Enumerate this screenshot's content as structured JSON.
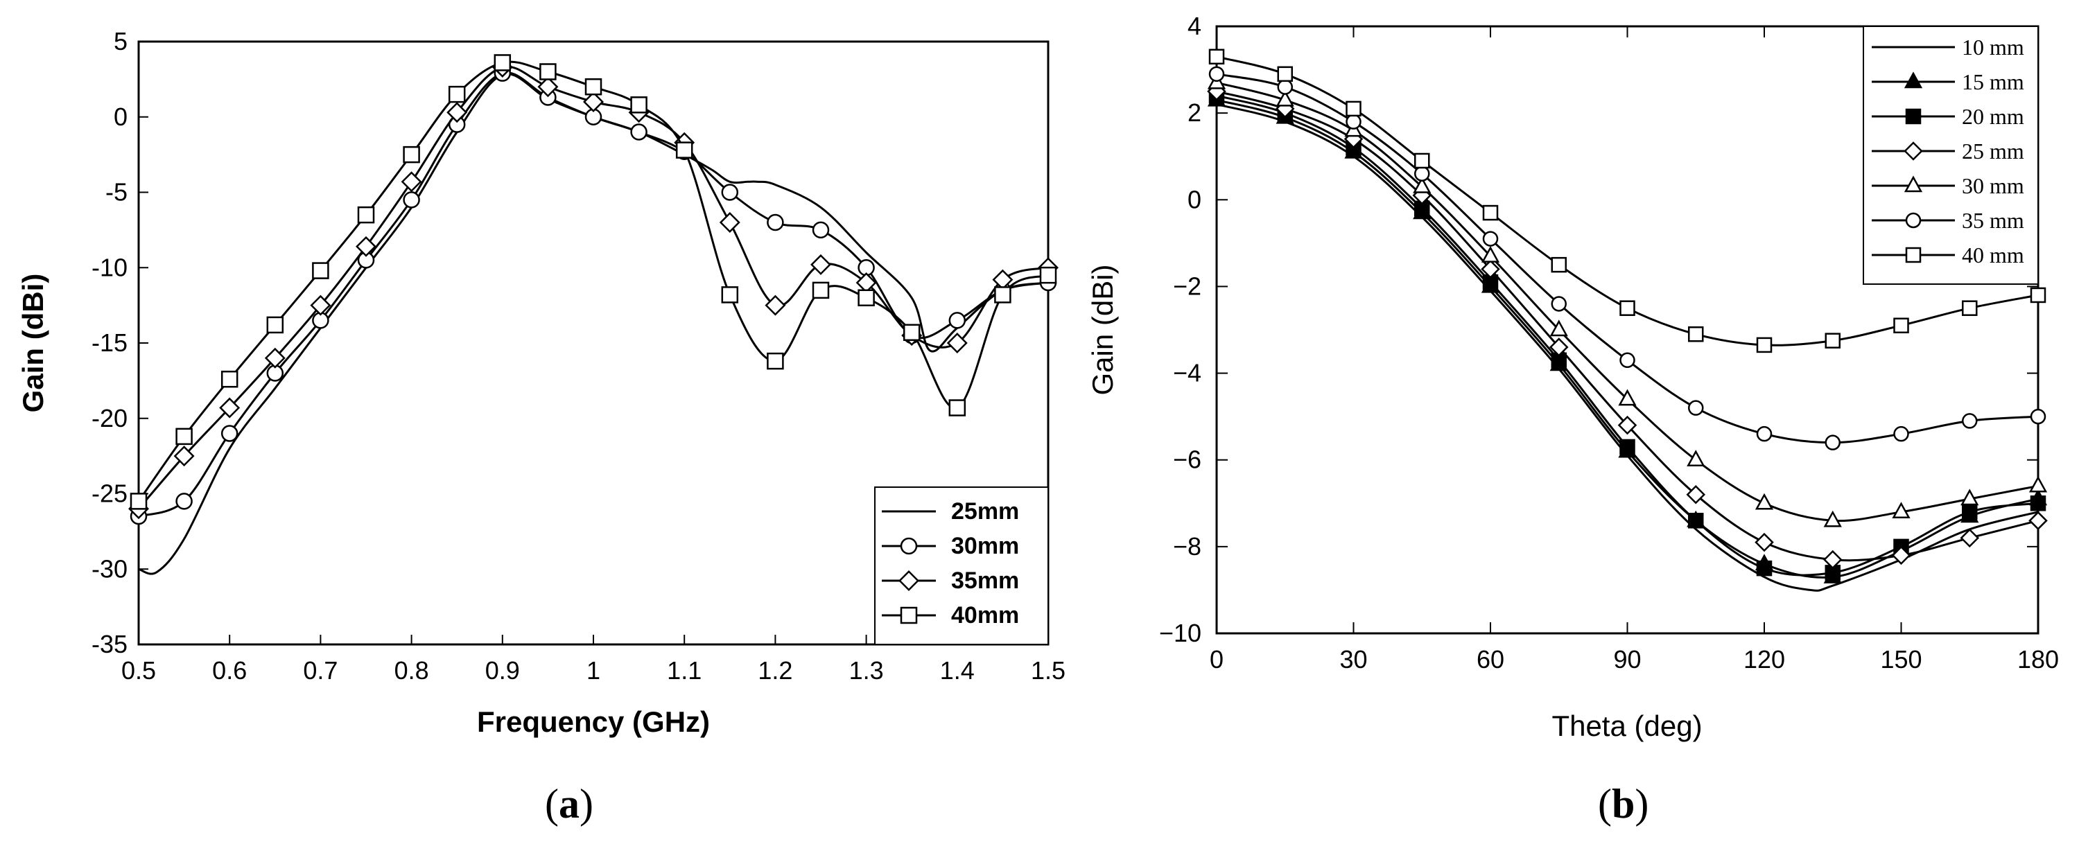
{
  "chart_data": [
    {
      "type": "line",
      "panel_label": "a",
      "title": "",
      "xlabel": "Frequency (GHz)",
      "ylabel": "Gain (dBi)",
      "xlim": [
        0.5,
        1.5
      ],
      "ylim": [
        -35,
        5
      ],
      "xticks": [
        0.5,
        0.6,
        0.7,
        0.8,
        0.9,
        1,
        1.1,
        1.2,
        1.3,
        1.4,
        1.5
      ],
      "xtick_labels": [
        "0.5",
        "0.6",
        "0.7",
        "0.8",
        "0.9",
        "1",
        "1.1",
        "1.2",
        "1.3",
        "1.4",
        "1.5"
      ],
      "yticks": [
        -35,
        -30,
        -25,
        -20,
        -15,
        -10,
        -5,
        0,
        5
      ],
      "ytick_labels": [
        "-35",
        "-30",
        "-25",
        "-20",
        "-15",
        "-10",
        "-5",
        "0",
        "5"
      ],
      "legend_position": "bottom-right",
      "grid": false,
      "series": [
        {
          "name": "25mm",
          "marker": "none",
          "x": [
            0.5,
            0.52,
            0.55,
            0.6,
            0.65,
            0.7,
            0.75,
            0.8,
            0.85,
            0.9,
            0.95,
            1.0,
            1.05,
            1.1,
            1.13,
            1.15,
            1.17,
            1.18,
            1.2,
            1.25,
            1.3,
            1.35,
            1.37,
            1.4,
            1.45,
            1.5
          ],
          "y": [
            -30,
            -30.2,
            -28,
            -22,
            -18,
            -14,
            -10,
            -6,
            -1,
            2.8,
            1.2,
            0,
            -1,
            -2.5,
            -3.5,
            -4.3,
            -4.3,
            -4.3,
            -4.5,
            -6,
            -9,
            -12,
            -15.5,
            -14,
            -11.5,
            -11
          ]
        },
        {
          "name": "30mm",
          "marker": "circle",
          "x": [
            0.5,
            0.55,
            0.6,
            0.65,
            0.7,
            0.75,
            0.8,
            0.85,
            0.9,
            0.95,
            1.0,
            1.05,
            1.1,
            1.15,
            1.2,
            1.25,
            1.3,
            1.35,
            1.4,
            1.45,
            1.5
          ],
          "y": [
            -26.5,
            -25.5,
            -21,
            -17,
            -13.5,
            -9.5,
            -5.5,
            -0.5,
            2.9,
            1.3,
            0,
            -1,
            -2.3,
            -5,
            -7,
            -7.5,
            -10,
            -14.5,
            -13.5,
            -11.5,
            -11
          ]
        },
        {
          "name": "35mm",
          "marker": "diamond",
          "x": [
            0.5,
            0.55,
            0.6,
            0.65,
            0.7,
            0.75,
            0.8,
            0.85,
            0.9,
            0.95,
            1.0,
            1.05,
            1.1,
            1.15,
            1.2,
            1.25,
            1.3,
            1.35,
            1.4,
            1.45,
            1.5
          ],
          "y": [
            -26,
            -22.5,
            -19.3,
            -16,
            -12.5,
            -8.6,
            -4.3,
            0.3,
            3.3,
            2,
            1,
            0.3,
            -1.7,
            -7,
            -12.5,
            -9.8,
            -11,
            -14.5,
            -15,
            -10.8,
            -10
          ]
        },
        {
          "name": "40mm",
          "marker": "square",
          "x": [
            0.5,
            0.55,
            0.6,
            0.65,
            0.7,
            0.75,
            0.8,
            0.85,
            0.9,
            0.95,
            1.0,
            1.05,
            1.1,
            1.15,
            1.2,
            1.25,
            1.3,
            1.35,
            1.4,
            1.45,
            1.5
          ],
          "y": [
            -25.5,
            -21.2,
            -17.4,
            -13.8,
            -10.2,
            -6.5,
            -2.5,
            1.5,
            3.6,
            3,
            2,
            0.8,
            -2.2,
            -11.8,
            -16.2,
            -11.5,
            -12,
            -14.3,
            -19.3,
            -11.8,
            -10.5
          ]
        }
      ]
    },
    {
      "type": "line",
      "panel_label": "b",
      "title": "",
      "xlabel": "Theta (deg)",
      "ylabel": "Gain (dBi)",
      "xlim": [
        0,
        180
      ],
      "ylim": [
        -10,
        4
      ],
      "xticks": [
        0,
        30,
        60,
        90,
        120,
        150,
        180
      ],
      "xtick_labels": [
        "0",
        "30",
        "60",
        "90",
        "120",
        "150",
        "180"
      ],
      "yticks": [
        -10,
        -8,
        -6,
        -4,
        -2,
        0,
        2,
        4
      ],
      "ytick_labels": [
        "−10",
        "−8",
        "−6",
        "−4",
        "−2",
        "0",
        "2",
        "4"
      ],
      "legend_position": "top-right",
      "grid": false,
      "series": [
        {
          "name": "10 mm",
          "marker": "none",
          "x": [
            0,
            15,
            30,
            45,
            60,
            75,
            90,
            105,
            120,
            130,
            135,
            150,
            165,
            180
          ],
          "y": [
            2.2,
            1.8,
            1.0,
            -0.4,
            -2.1,
            -3.9,
            -5.9,
            -7.6,
            -8.7,
            -9.0,
            -8.9,
            -8.3,
            -7.6,
            -7.2
          ]
        },
        {
          "name": "15 mm",
          "marker": "triangle-filled",
          "x": [
            0,
            15,
            30,
            45,
            60,
            75,
            90,
            105,
            120,
            135,
            150,
            165,
            180
          ],
          "y": [
            2.3,
            1.9,
            1.1,
            -0.3,
            -2.0,
            -3.8,
            -5.8,
            -7.4,
            -8.4,
            -8.7,
            -8.1,
            -7.3,
            -6.9
          ]
        },
        {
          "name": "20 mm",
          "marker": "square-filled",
          "x": [
            0,
            15,
            30,
            45,
            60,
            75,
            90,
            105,
            120,
            135,
            150,
            165,
            180
          ],
          "y": [
            2.4,
            2.0,
            1.2,
            -0.2,
            -1.9,
            -3.7,
            -5.7,
            -7.4,
            -8.5,
            -8.6,
            -8.0,
            -7.2,
            -7.0
          ]
        },
        {
          "name": "25 mm",
          "marker": "diamond",
          "x": [
            0,
            15,
            30,
            45,
            60,
            75,
            90,
            105,
            120,
            135,
            150,
            165,
            180
          ],
          "y": [
            2.5,
            2.1,
            1.4,
            0.1,
            -1.6,
            -3.4,
            -5.2,
            -6.8,
            -7.9,
            -8.3,
            -8.2,
            -7.8,
            -7.4
          ]
        },
        {
          "name": "30 mm",
          "marker": "triangle",
          "x": [
            0,
            15,
            30,
            45,
            60,
            75,
            90,
            105,
            120,
            135,
            150,
            165,
            180
          ],
          "y": [
            2.7,
            2.3,
            1.6,
            0.3,
            -1.3,
            -3.0,
            -4.6,
            -6.0,
            -7.0,
            -7.4,
            -7.2,
            -6.9,
            -6.6
          ]
        },
        {
          "name": "35 mm",
          "marker": "circle",
          "x": [
            0,
            15,
            30,
            45,
            60,
            75,
            90,
            105,
            120,
            135,
            150,
            165,
            180
          ],
          "y": [
            2.9,
            2.6,
            1.8,
            0.6,
            -0.9,
            -2.4,
            -3.7,
            -4.8,
            -5.4,
            -5.6,
            -5.4,
            -5.1,
            -5.0
          ]
        },
        {
          "name": "40 mm",
          "marker": "square",
          "x": [
            0,
            15,
            30,
            45,
            60,
            75,
            90,
            105,
            120,
            135,
            150,
            165,
            180
          ],
          "y": [
            3.3,
            2.9,
            2.1,
            0.9,
            -0.3,
            -1.5,
            -2.5,
            -3.1,
            -3.35,
            -3.25,
            -2.9,
            -2.5,
            -2.2
          ]
        }
      ]
    }
  ]
}
